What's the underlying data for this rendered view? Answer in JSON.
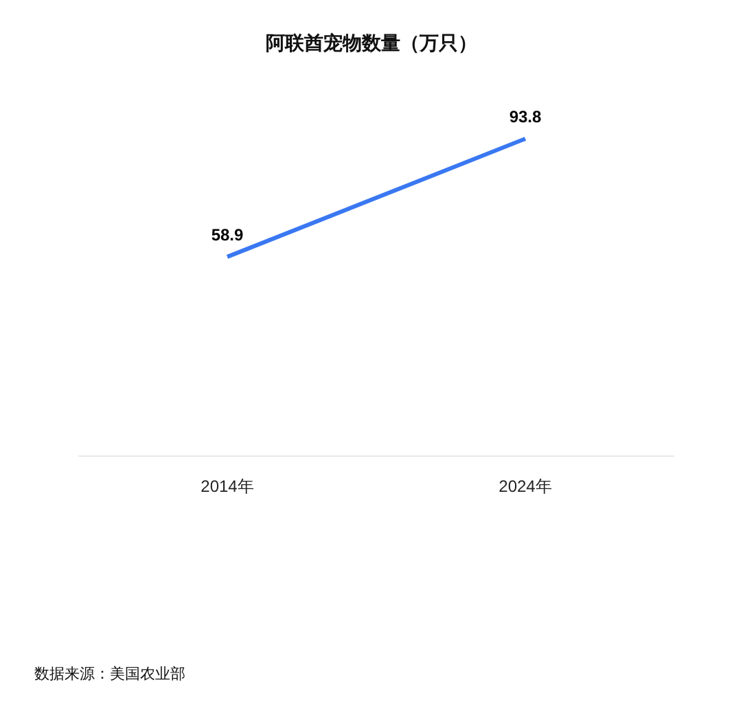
{
  "chart_data": {
    "type": "line",
    "title": "阿联酋宠物数量（万只）",
    "categories": [
      "2014年",
      "2024年"
    ],
    "values": [
      58.9,
      93.8
    ],
    "color": "#3a78f2",
    "tick_labels": "x",
    "data_labels": true,
    "annotations": [
      "数据来源：美国农业部"
    ]
  }
}
